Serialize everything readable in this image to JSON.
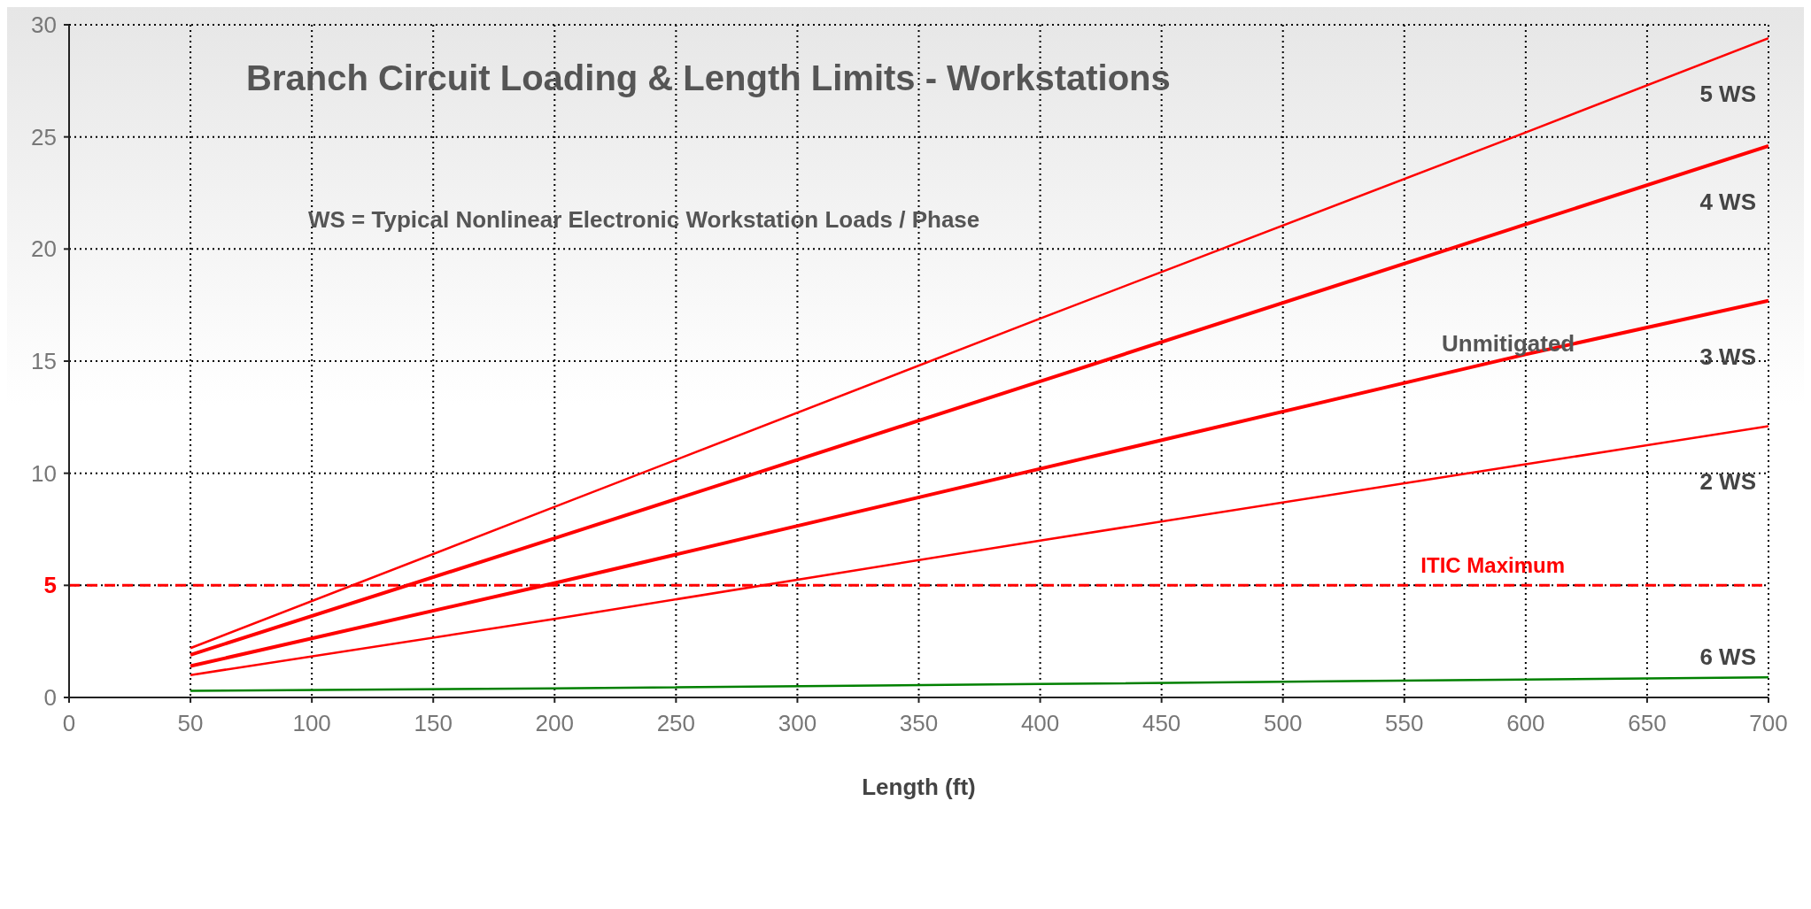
{
  "chart_data": {
    "type": "line",
    "title": "Branch Circuit Loading & Length Limits - Workstations",
    "xlabel": "Length (ft)",
    "annotations": [
      "WS = Typical Nonlinear Electronic Workstation Loads / Phase",
      "Unmitigated"
    ],
    "x": [
      50,
      200,
      400,
      600,
      700
    ],
    "series": [
      {
        "name": "5 WS",
        "color": "#ff0000",
        "values": [
          2.2,
          8.5,
          16.9,
          25.2,
          29.4
        ]
      },
      {
        "name": "4 WS",
        "color": "#ff0000",
        "values": [
          1.9,
          7.1,
          14.1,
          21.1,
          24.6
        ]
      },
      {
        "name": "3 WS",
        "color": "#ff0000",
        "values": [
          1.4,
          5.1,
          10.2,
          15.3,
          17.7
        ]
      },
      {
        "name": "2 WS",
        "color": "#ff0000",
        "values": [
          1.0,
          3.5,
          7.0,
          10.4,
          12.1
        ]
      },
      {
        "name": "6 WS",
        "color": "#008000",
        "values": [
          0.3,
          0.4,
          0.6,
          0.8,
          0.9
        ]
      }
    ],
    "xlim": [
      0,
      700
    ],
    "xticks": [
      0,
      50,
      100,
      150,
      200,
      250,
      300,
      350,
      400,
      450,
      500,
      550,
      600,
      650,
      700
    ],
    "ylim": [
      0,
      30
    ],
    "yticks": [
      0,
      5,
      10,
      15,
      20,
      25,
      30
    ],
    "ref_lines": [
      {
        "axis": "y",
        "value": 5,
        "label": "ITIC Maximum",
        "color": "#ff0000",
        "line_style": "dashed"
      }
    ],
    "grid": true,
    "marker": "none",
    "line_style": "solid"
  }
}
